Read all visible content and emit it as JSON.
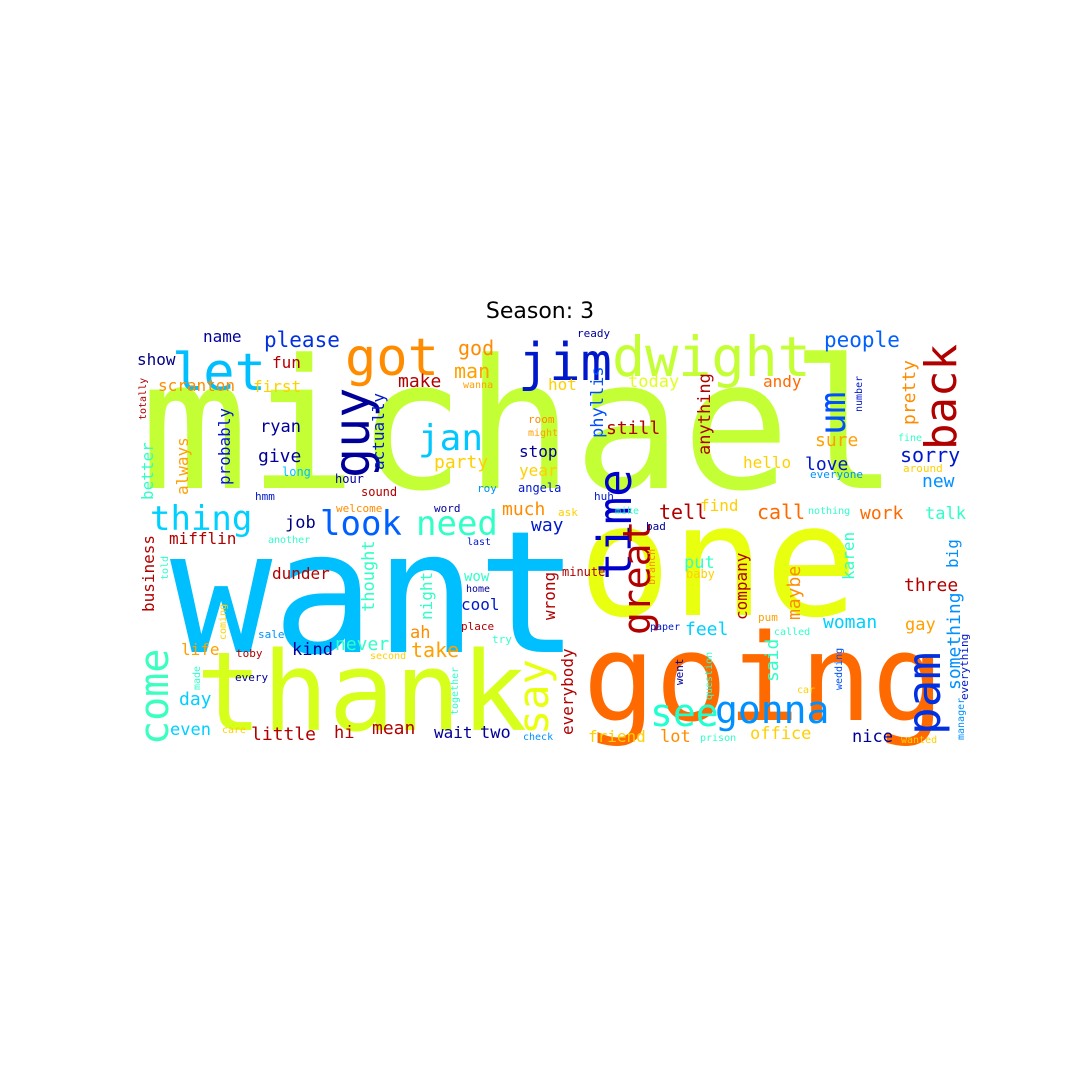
{
  "title": "Season: 3",
  "words": [
    {
      "text": "michael",
      "color": "#c3ff34"
    },
    {
      "text": "want",
      "color": "#00bfff"
    },
    {
      "text": "one",
      "color": "#e8ff10"
    },
    {
      "text": "going",
      "color": "#ff6a00"
    },
    {
      "text": "thank",
      "color": "#d6ff1c"
    },
    {
      "text": "jim",
      "color": "#0018cc"
    },
    {
      "text": "dwight",
      "color": "#c3ff34"
    },
    {
      "text": "got",
      "color": "#ff8c00"
    },
    {
      "text": "let",
      "color": "#00bfff"
    },
    {
      "text": "back",
      "color": "#b00000"
    },
    {
      "text": "guy",
      "color": "#000099"
    },
    {
      "text": "time",
      "color": "#0000cc"
    },
    {
      "text": "pam",
      "color": "#0030e0"
    },
    {
      "text": "come",
      "color": "#3affc0"
    },
    {
      "text": "say",
      "color": "#e8ff10"
    },
    {
      "text": "great",
      "color": "#b00000"
    },
    {
      "text": "gonna",
      "color": "#0090ff"
    },
    {
      "text": "see",
      "color": "#20ffd0"
    },
    {
      "text": "jan",
      "color": "#00c8ff"
    },
    {
      "text": "need",
      "color": "#30ffc8"
    },
    {
      "text": "look",
      "color": "#0060ff"
    },
    {
      "text": "thing",
      "color": "#00d0ff"
    },
    {
      "text": "um",
      "color": "#0050ff"
    },
    {
      "text": "people",
      "color": "#0060ff"
    },
    {
      "text": "please",
      "color": "#0030e0"
    },
    {
      "text": "name",
      "color": "#000099"
    },
    {
      "text": "god",
      "color": "#ff8c00"
    },
    {
      "text": "man",
      "color": "#ffa000"
    },
    {
      "text": "show",
      "color": "#000080"
    },
    {
      "text": "fun",
      "color": "#b00000"
    },
    {
      "text": "scranton",
      "color": "#ff8c00"
    },
    {
      "text": "first",
      "color": "#ffd000"
    },
    {
      "text": "make",
      "color": "#b00000"
    },
    {
      "text": "today",
      "color": "#e0ff20"
    },
    {
      "text": "andy",
      "color": "#ff6a00"
    },
    {
      "text": "pretty",
      "color": "#ff8c00"
    },
    {
      "text": "hot",
      "color": "#ffd000"
    },
    {
      "text": "phyllis",
      "color": "#0050ff"
    },
    {
      "text": "anything",
      "color": "#b00000"
    },
    {
      "text": "actually",
      "color": "#0018cc"
    },
    {
      "text": "still",
      "color": "#b00000"
    },
    {
      "text": "ryan",
      "color": "#000099"
    },
    {
      "text": "probably",
      "color": "#0018cc"
    },
    {
      "text": "give",
      "color": "#000099"
    },
    {
      "text": "party",
      "color": "#ffd000"
    },
    {
      "text": "stop",
      "color": "#000099"
    },
    {
      "text": "year",
      "color": "#ffd000"
    },
    {
      "text": "sure",
      "color": "#ffa000"
    },
    {
      "text": "hello",
      "color": "#ffd000"
    },
    {
      "text": "love",
      "color": "#0018cc"
    },
    {
      "text": "sorry",
      "color": "#0018cc"
    },
    {
      "text": "new",
      "color": "#0090ff"
    },
    {
      "text": "always",
      "color": "#ffa000"
    },
    {
      "text": "better",
      "color": "#30ffc8"
    },
    {
      "text": "long",
      "color": "#00bfff"
    },
    {
      "text": "hour",
      "color": "#000099"
    },
    {
      "text": "sound",
      "color": "#b00000"
    },
    {
      "text": "roy",
      "color": "#0090ff"
    },
    {
      "text": "angela",
      "color": "#0018cc"
    },
    {
      "text": "hmm",
      "color": "#0018cc"
    },
    {
      "text": "huh",
      "color": "#0018cc"
    },
    {
      "text": "much",
      "color": "#ff8c00"
    },
    {
      "text": "way",
      "color": "#0018cc"
    },
    {
      "text": "tell",
      "color": "#b00000"
    },
    {
      "text": "find",
      "color": "#ffd000"
    },
    {
      "text": "call",
      "color": "#ff6a00"
    },
    {
      "text": "work",
      "color": "#ff6a00"
    },
    {
      "text": "talk",
      "color": "#30ffc8"
    },
    {
      "text": "job",
      "color": "#000080"
    },
    {
      "text": "mifflin",
      "color": "#b00000"
    },
    {
      "text": "business",
      "color": "#b00000"
    },
    {
      "text": "dunder",
      "color": "#b00000"
    },
    {
      "text": "thought",
      "color": "#30ffc8"
    },
    {
      "text": "night",
      "color": "#30ffc8"
    },
    {
      "text": "wow",
      "color": "#30ffc8"
    },
    {
      "text": "cool",
      "color": "#0018cc"
    },
    {
      "text": "wrong",
      "color": "#b00000"
    },
    {
      "text": "minute",
      "color": "#b00000"
    },
    {
      "text": "put",
      "color": "#30ffc8"
    },
    {
      "text": "baby",
      "color": "#ffd000"
    },
    {
      "text": "company",
      "color": "#b00000"
    },
    {
      "text": "maybe",
      "color": "#ff8c00"
    },
    {
      "text": "karen",
      "color": "#30ffc8"
    },
    {
      "text": "big",
      "color": "#0090ff"
    },
    {
      "text": "three",
      "color": "#b00000"
    },
    {
      "text": "woman",
      "color": "#00d0ff"
    },
    {
      "text": "gay",
      "color": "#ffa000"
    },
    {
      "text": "something",
      "color": "#0090ff"
    },
    {
      "text": "feel",
      "color": "#00d0ff"
    },
    {
      "text": "said",
      "color": "#30ffc8"
    },
    {
      "text": "never",
      "color": "#30ffc8"
    },
    {
      "text": "ah",
      "color": "#ff8c00"
    },
    {
      "text": "take",
      "color": "#ffa000"
    },
    {
      "text": "kind",
      "color": "#000099"
    },
    {
      "text": "life",
      "color": "#ffa000"
    },
    {
      "text": "day",
      "color": "#00d0ff"
    },
    {
      "text": "even",
      "color": "#00d0ff"
    },
    {
      "text": "little",
      "color": "#b00000"
    },
    {
      "text": "hi",
      "color": "#b00000"
    },
    {
      "text": "mean",
      "color": "#b00000"
    },
    {
      "text": "wait",
      "color": "#000099"
    },
    {
      "text": "two",
      "color": "#000099"
    },
    {
      "text": "everybody",
      "color": "#b00000"
    },
    {
      "text": "friend",
      "color": "#ffd000"
    },
    {
      "text": "lot",
      "color": "#ff8c00"
    },
    {
      "text": "office",
      "color": "#ffd000"
    },
    {
      "text": "nice",
      "color": "#000099"
    },
    {
      "text": "toby",
      "color": "#b00000"
    },
    {
      "text": "every",
      "color": "#000099"
    },
    {
      "text": "sale",
      "color": "#0090ff"
    },
    {
      "text": "coming",
      "color": "#ffd000"
    },
    {
      "text": "made",
      "color": "#30ffc8"
    },
    {
      "text": "told",
      "color": "#30ffc8"
    },
    {
      "text": "care",
      "color": "#ffd000"
    },
    {
      "text": "second",
      "color": "#ffd000"
    },
    {
      "text": "together",
      "color": "#30ffc8"
    },
    {
      "text": "check",
      "color": "#0090ff"
    },
    {
      "text": "try",
      "color": "#30ffc8"
    },
    {
      "text": "place",
      "color": "#b00000"
    },
    {
      "text": "home",
      "color": "#000099"
    },
    {
      "text": "last",
      "color": "#0018cc"
    },
    {
      "text": "word",
      "color": "#000099"
    },
    {
      "text": "welcome",
      "color": "#ff8c00"
    },
    {
      "text": "another",
      "color": "#30ffc8"
    },
    {
      "text": "ask",
      "color": "#ffd000"
    },
    {
      "text": "mike",
      "color": "#30ffc8"
    },
    {
      "text": "bad",
      "color": "#000099"
    },
    {
      "text": "branch",
      "color": "#ff8c00"
    },
    {
      "text": "paper",
      "color": "#0018cc"
    },
    {
      "text": "question",
      "color": "#30ffc8"
    },
    {
      "text": "went",
      "color": "#000099"
    },
    {
      "text": "pum",
      "color": "#ffa000"
    },
    {
      "text": "called",
      "color": "#30ffc8"
    },
    {
      "text": "car",
      "color": "#ffd000"
    },
    {
      "text": "prison",
      "color": "#30ffc8"
    },
    {
      "text": "wedding",
      "color": "#0050ff"
    },
    {
      "text": "manager",
      "color": "#0090ff"
    },
    {
      "text": "everything",
      "color": "#0018cc"
    },
    {
      "text": "wanted",
      "color": "#ffd000"
    },
    {
      "text": "nothing",
      "color": "#30ffc8"
    },
    {
      "text": "fine",
      "color": "#30ffc8"
    },
    {
      "text": "around",
      "color": "#ffd000"
    },
    {
      "text": "everyone",
      "color": "#0090ff"
    },
    {
      "text": "number",
      "color": "#0018cc"
    },
    {
      "text": "room",
      "color": "#ff8c00"
    },
    {
      "text": "might",
      "color": "#ffa000"
    },
    {
      "text": "ready",
      "color": "#000099"
    },
    {
      "text": "wanna",
      "color": "#ffa000"
    },
    {
      "text": "totally",
      "color": "#b00000"
    }
  ]
}
